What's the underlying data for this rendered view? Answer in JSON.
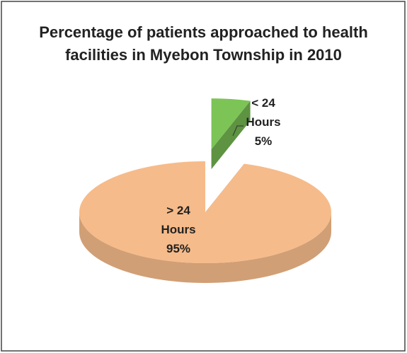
{
  "chart_data": {
    "type": "pie3d",
    "title": "Percentage of patients approached to health facilities in Myebon Township in 2010",
    "categories": [
      "> 24 Hours",
      "< 24 Hours"
    ],
    "values": [
      95,
      5
    ],
    "value_labels": [
      "95%",
      "5%"
    ],
    "colors": [
      "#f6bb8a",
      "#7cc456"
    ],
    "explode": [
      false,
      true
    ]
  }
}
